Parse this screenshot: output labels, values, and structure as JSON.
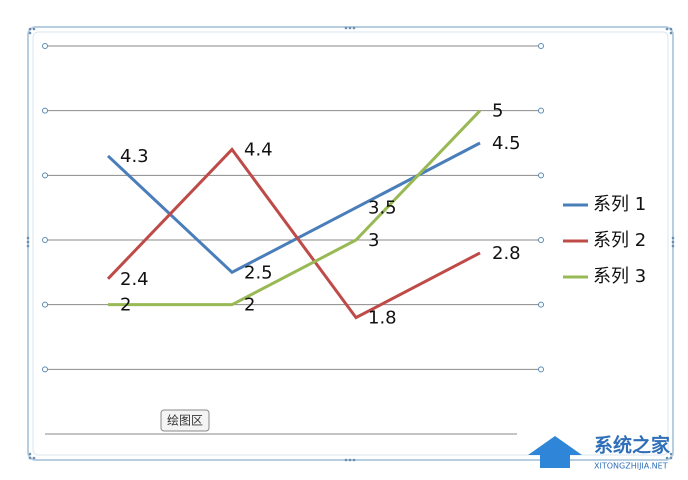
{
  "chart_data": {
    "type": "line",
    "categories": [
      null,
      null,
      null,
      null
    ],
    "series": [
      {
        "name": "系列 1",
        "color": "#4a7ebb",
        "values": [
          4.3,
          2.5,
          3.5,
          4.5
        ]
      },
      {
        "name": "系列 2",
        "color": "#be4b48",
        "values": [
          2.4,
          4.4,
          1.8,
          2.8
        ]
      },
      {
        "name": "系列 3",
        "color": "#98b954",
        "values": [
          2,
          2,
          3,
          5
        ]
      }
    ],
    "ylim": [
      0,
      6
    ],
    "yticks": [
      0,
      1,
      2,
      3,
      4,
      5,
      6
    ],
    "grid": true,
    "legend": "right"
  },
  "tooltip": "绘图区",
  "watermark": {
    "title": "系统之家",
    "url": "XITONGZHIJIA.NET"
  }
}
